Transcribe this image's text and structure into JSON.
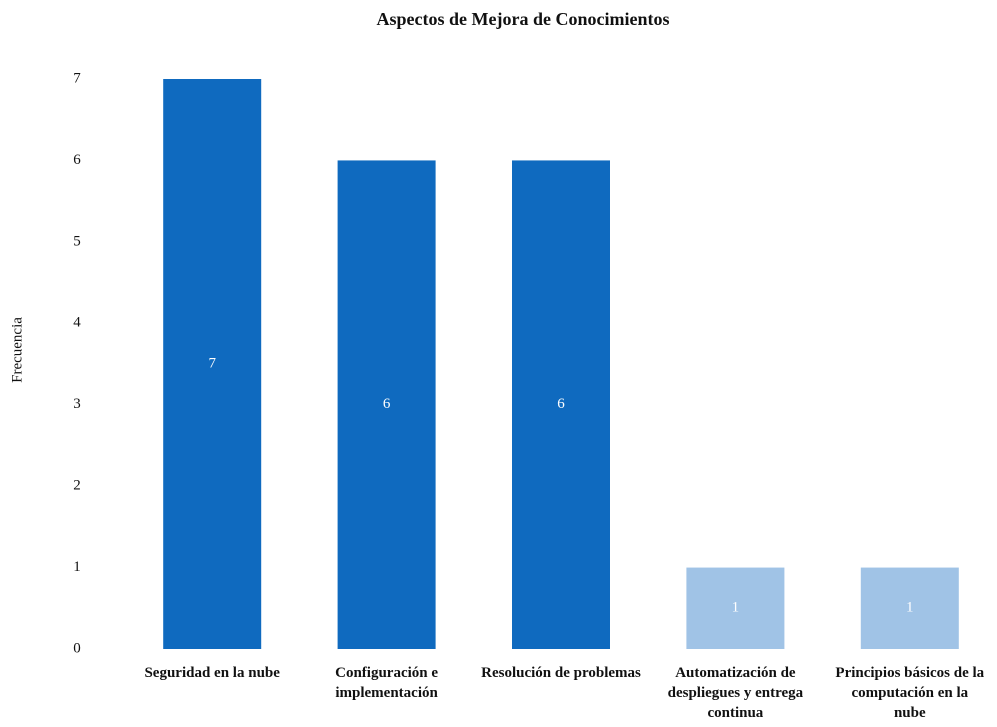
{
  "chart_data": {
    "type": "bar",
    "title": "Aspectos de Mejora de Conocimientos",
    "y_label": "Frecuencia",
    "categories": [
      "Seguridad en la nube",
      "Configuración e implementación",
      "Resolución de problemas",
      "Automatización de despliegues y entrega continua",
      "Principios básicos de la computación en la nube"
    ],
    "values": [
      7,
      6,
      6,
      1,
      1
    ],
    "colors": [
      "#0f6abf",
      "#0f6abf",
      "#0f6abf",
      "#a0c3e6",
      "#a0c3e6"
    ],
    "ylim": [
      0,
      7
    ],
    "yticks": [
      0,
      1,
      2,
      3,
      4,
      5,
      6,
      7
    ],
    "grid": false
  }
}
